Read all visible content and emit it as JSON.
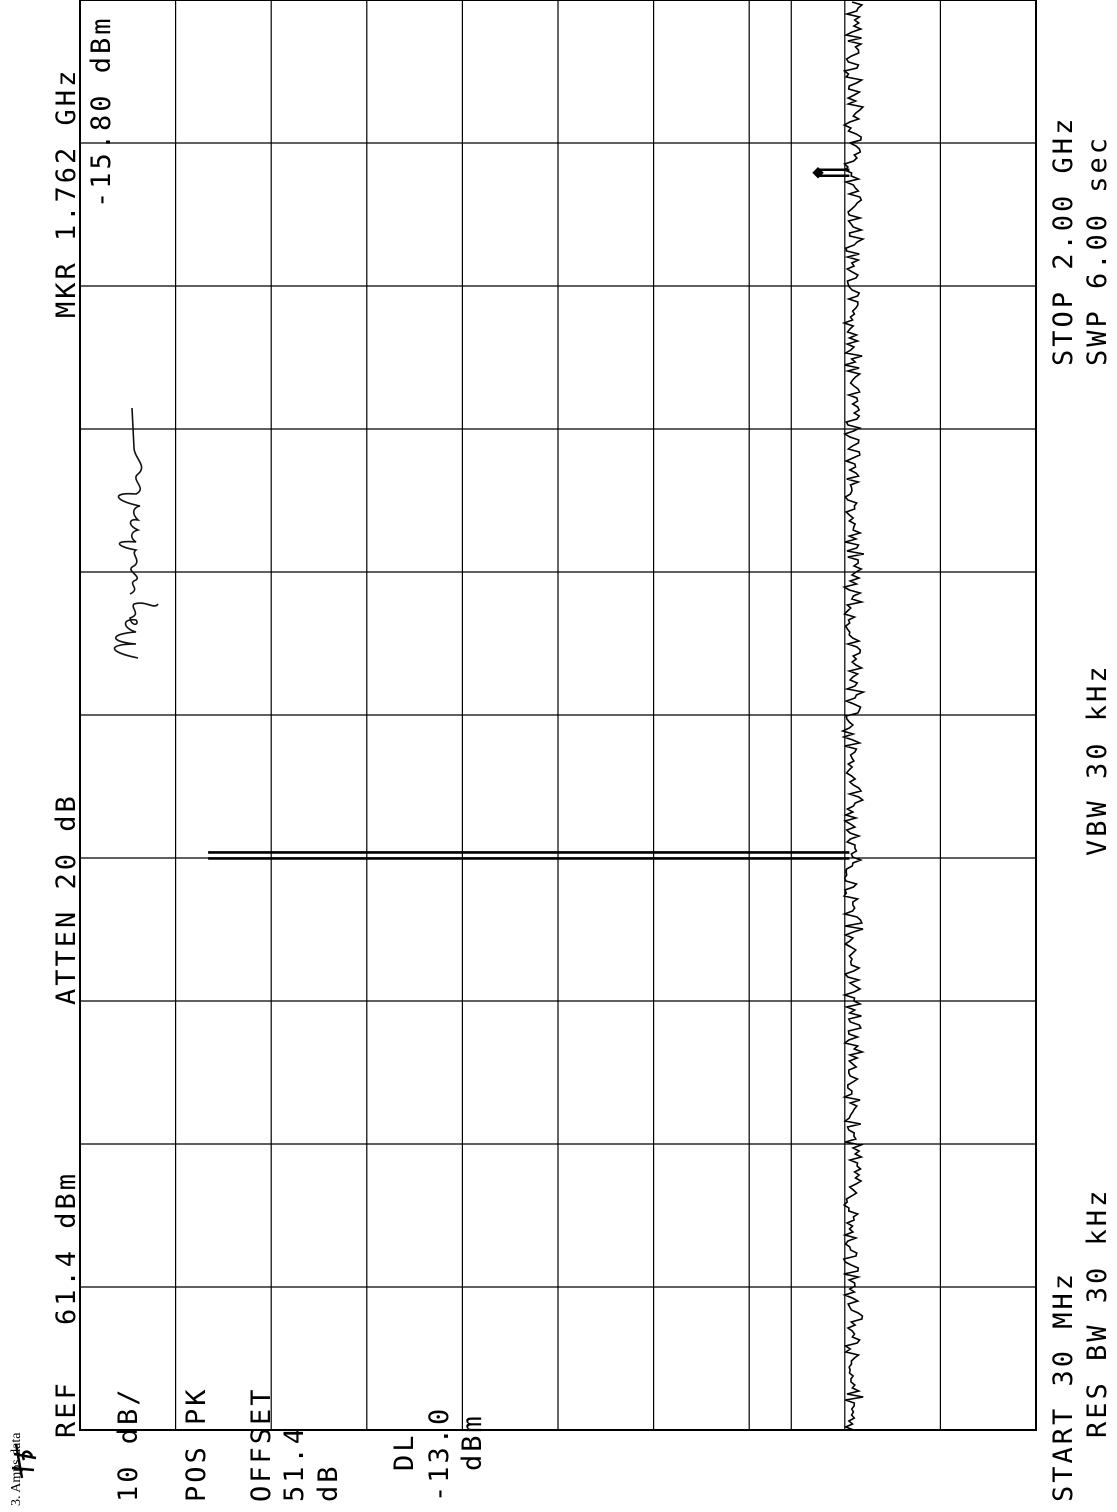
{
  "doc_note": "3. Amps data",
  "logo": "hp",
  "left_panel": {
    "scale": "10 dB/",
    "detector": "POS PK",
    "offset_label": "OFFSET",
    "offset_value": "51.4",
    "offset_unit": "dB",
    "dl_label": "DL",
    "dl_value": "-13.0",
    "dl_unit": "dBm"
  },
  "top_bar": {
    "ref_label": "REF",
    "ref_value": "61.4 dBm",
    "atten": "ATTEN 20 dB"
  },
  "marker": {
    "label": "MKR 1.762 GHz",
    "value": "-15.80 dBm"
  },
  "bottom_bar": {
    "start": "START 30 MHz",
    "res_bw": "RES BW 30 kHz",
    "vbw": "VBW 30 kHz",
    "stop": "STOP 2.00 GHz",
    "sweep": "SWP 6.00  sec"
  },
  "signature": "Mary Washington",
  "colors": {
    "trace": "#000000",
    "grid": "#000000",
    "background": "#ffffff"
  },
  "chart_data": {
    "type": "line",
    "x_unit": "MHz",
    "y_unit": "dBm",
    "xlim": [
      30,
      2000
    ],
    "ylim": [
      -38.6,
      61.4
    ],
    "y_per_div": 10,
    "grid": true,
    "display_line": -13.0,
    "noise_floor": -19.5,
    "spurs": [
      {
        "x": 821.5,
        "y": 48.0
      },
      {
        "x": 1762,
        "y": -15.8
      }
    ],
    "marker_point": {
      "x": 1762,
      "y": -15.8
    }
  }
}
